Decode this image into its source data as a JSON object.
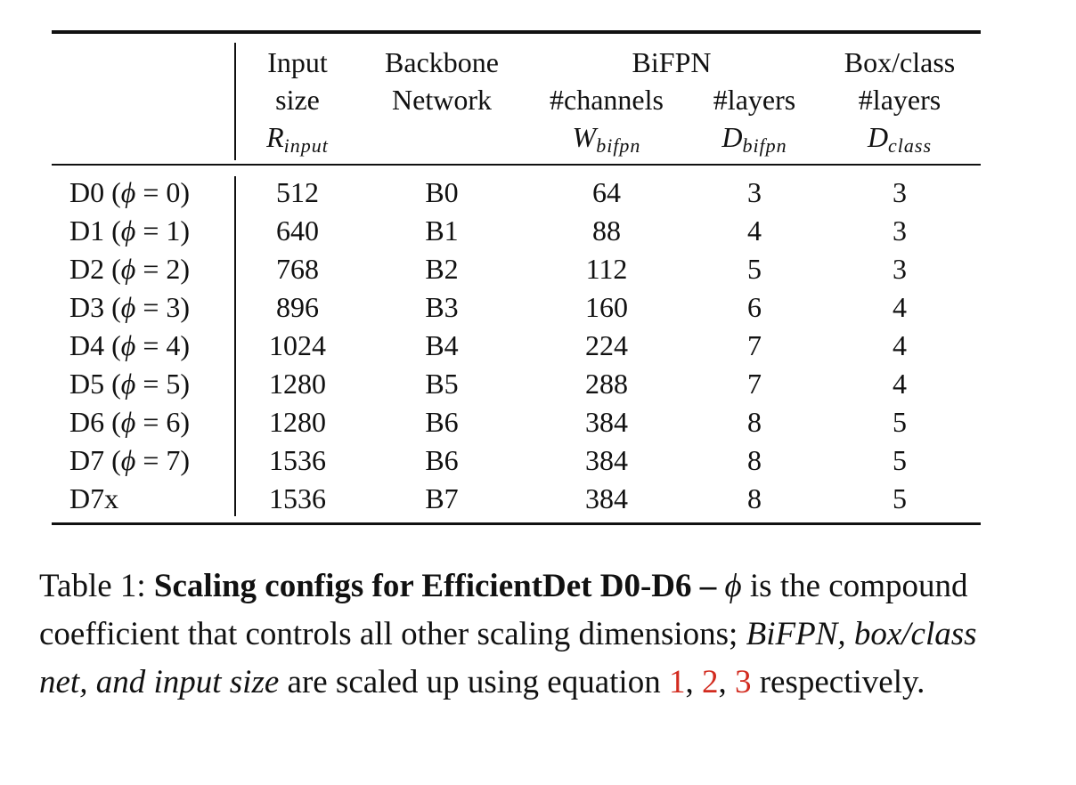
{
  "table": {
    "header": {
      "input": [
        "Input",
        "size"
      ],
      "input_sym": "R",
      "input_sub": "input",
      "backbone": [
        "Backbone",
        "Network"
      ],
      "bifpn": "BiFPN",
      "bifpn_channels": "#channels",
      "bifpn_channels_sym": "W",
      "bifpn_channels_sub": "bifpn",
      "bifpn_layers": "#layers",
      "bifpn_layers_sym": "D",
      "bifpn_layers_sub": "bifpn",
      "boxclass": [
        "Box/class",
        "#layers"
      ],
      "boxclass_sym": "D",
      "boxclass_sub": "class"
    },
    "rows": [
      {
        "model": "D0",
        "phi": "0",
        "input": "512",
        "backbone": "B0",
        "channels": "64",
        "bifpn_layers": "3",
        "class_layers": "3"
      },
      {
        "model": "D1",
        "phi": "1",
        "input": "640",
        "backbone": "B1",
        "channels": "88",
        "bifpn_layers": "4",
        "class_layers": "3"
      },
      {
        "model": "D2",
        "phi": "2",
        "input": "768",
        "backbone": "B2",
        "channels": "112",
        "bifpn_layers": "5",
        "class_layers": "3"
      },
      {
        "model": "D3",
        "phi": "3",
        "input": "896",
        "backbone": "B3",
        "channels": "160",
        "bifpn_layers": "6",
        "class_layers": "4"
      },
      {
        "model": "D4",
        "phi": "4",
        "input": "1024",
        "backbone": "B4",
        "channels": "224",
        "bifpn_layers": "7",
        "class_layers": "4"
      },
      {
        "model": "D5",
        "phi": "5",
        "input": "1280",
        "backbone": "B5",
        "channels": "288",
        "bifpn_layers": "7",
        "class_layers": "4"
      },
      {
        "model": "D6",
        "phi": "6",
        "input": "1280",
        "backbone": "B6",
        "channels": "384",
        "bifpn_layers": "8",
        "class_layers": "5"
      },
      {
        "model": "D7",
        "phi": "7",
        "input": "1536",
        "backbone": "B6",
        "channels": "384",
        "bifpn_layers": "8",
        "class_layers": "5"
      },
      {
        "model": "D7x",
        "phi": "",
        "input": "1536",
        "backbone": "B7",
        "channels": "384",
        "bifpn_layers": "8",
        "class_layers": "5"
      }
    ]
  },
  "caption": {
    "prefix": "Table 1:",
    "bold": "Scaling configs for EfficientDet D0-D6 –",
    "phi_symbol": "ϕ",
    "text1": "is the compound coefficient that controls all other scaling dimensions;",
    "italic": "BiFPN, box/class net, and input size",
    "text2": "are scaled up using equation",
    "refs": [
      "1",
      "2",
      "3"
    ],
    "text3": "respectively."
  }
}
